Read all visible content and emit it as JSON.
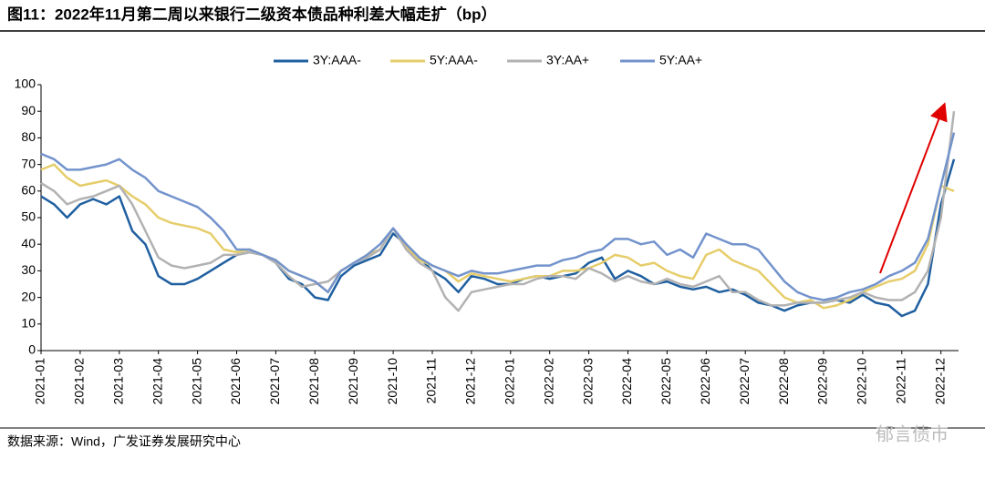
{
  "chart_data": {
    "type": "line",
    "title": "图11：2022年11月第二周以来银行二级资本债品种利差大幅走扩（bp）",
    "source": "数据来源：Wind，广发证券发展研究中心",
    "watermark": "郁言债市",
    "categories": [
      "2021-01",
      null,
      null,
      "2021-02",
      null,
      null,
      "2021-03",
      null,
      null,
      "2021-04",
      null,
      null,
      "2021-05",
      null,
      null,
      "2021-06",
      null,
      null,
      "2021-07",
      null,
      null,
      "2021-08",
      null,
      null,
      "2021-09",
      null,
      null,
      "2021-10",
      null,
      null,
      "2021-11",
      null,
      null,
      "2021-12",
      null,
      null,
      "2022-01",
      null,
      null,
      "2022-02",
      null,
      null,
      "2022-03",
      null,
      null,
      "2022-04",
      null,
      null,
      "2022-05",
      null,
      null,
      "2022-06",
      null,
      null,
      "2022-07",
      null,
      null,
      "2022-08",
      null,
      null,
      "2022-09",
      null,
      null,
      "2022-10",
      null,
      null,
      "2022-11",
      null,
      null,
      "2022-12",
      null
    ],
    "series": [
      {
        "name": "3Y:AAA-",
        "color": "#1f5fa0",
        "values": [
          58,
          55,
          50,
          55,
          57,
          55,
          58,
          45,
          40,
          28,
          25,
          25,
          27,
          30,
          33,
          36,
          37,
          36,
          33,
          27,
          25,
          20,
          19,
          28,
          32,
          34,
          36,
          44,
          40,
          35,
          30,
          27,
          22,
          28,
          27,
          25,
          25,
          27,
          28,
          27,
          28,
          29,
          33,
          35,
          27,
          30,
          28,
          25,
          26,
          24,
          23,
          24,
          22,
          23,
          21,
          18,
          17,
          15,
          17,
          18,
          18,
          19,
          18,
          21,
          18,
          17,
          13,
          15,
          25,
          55,
          72
        ]
      },
      {
        "name": "5Y:AAA-",
        "color": "#e6cd6a",
        "values": [
          68,
          70,
          65,
          62,
          63,
          64,
          62,
          58,
          55,
          50,
          48,
          47,
          46,
          44,
          38,
          37,
          38,
          36,
          34,
          30,
          28,
          26,
          22,
          30,
          33,
          36,
          38,
          46,
          39,
          34,
          32,
          30,
          26,
          29,
          28,
          27,
          26,
          27,
          28,
          28,
          30,
          30,
          31,
          33,
          36,
          35,
          32,
          33,
          30,
          28,
          27,
          36,
          38,
          34,
          32,
          30,
          25,
          20,
          18,
          19,
          16,
          17,
          19,
          22,
          24,
          26,
          27,
          30,
          40,
          62,
          60
        ]
      },
      {
        "name": "3Y:AA+",
        "color": "#b2b2b2",
        "values": [
          63,
          60,
          55,
          57,
          58,
          60,
          62,
          55,
          45,
          35,
          32,
          31,
          32,
          33,
          36,
          36,
          37,
          36,
          33,
          28,
          24,
          25,
          26,
          30,
          33,
          35,
          38,
          46,
          38,
          33,
          30,
          20,
          15,
          22,
          23,
          24,
          25,
          25,
          27,
          28,
          28,
          27,
          31,
          29,
          26,
          28,
          26,
          25,
          27,
          25,
          24,
          26,
          28,
          22,
          22,
          19,
          17,
          17,
          18,
          18,
          18,
          19,
          20,
          22,
          20,
          19,
          19,
          22,
          30,
          50,
          90
        ]
      },
      {
        "name": "5Y:AA+",
        "color": "#7393cc",
        "values": [
          74,
          72,
          68,
          68,
          69,
          70,
          72,
          68,
          65,
          60,
          58,
          56,
          54,
          50,
          45,
          38,
          38,
          36,
          34,
          30,
          28,
          26,
          22,
          30,
          33,
          36,
          40,
          46,
          40,
          35,
          32,
          30,
          28,
          30,
          29,
          29,
          30,
          31,
          32,
          32,
          34,
          35,
          37,
          38,
          42,
          42,
          40,
          41,
          36,
          38,
          35,
          44,
          42,
          40,
          40,
          38,
          32,
          26,
          22,
          20,
          19,
          20,
          22,
          23,
          25,
          28,
          30,
          33,
          42,
          62,
          82
        ]
      }
    ],
    "ylim": [
      0,
      100
    ],
    "yticks": [
      0,
      10,
      20,
      30,
      40,
      50,
      60,
      70,
      80,
      90,
      100
    ],
    "grid": false,
    "legend": "top"
  }
}
